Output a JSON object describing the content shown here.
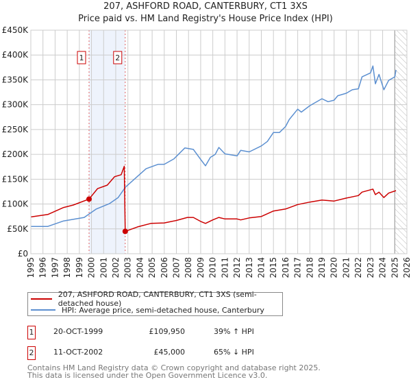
{
  "title": "207, ASHFORD ROAD, CANTERBURY, CT1 3XS",
  "subtitle": "Price paid vs. HM Land Registry's House Price Index (HPI)",
  "colors": {
    "price": "#cc0000",
    "hpi": "#5b8fd0",
    "band": "#eef3fc",
    "grid": "#cccccc"
  },
  "chart_data": {
    "type": "line",
    "ylim": [
      0,
      450000
    ],
    "xlim": [
      1995,
      2026
    ],
    "yticks": [
      0,
      50000,
      100000,
      150000,
      200000,
      250000,
      300000,
      350000,
      400000,
      450000
    ],
    "ytick_labels": [
      "£0",
      "£50K",
      "£100K",
      "£150K",
      "£200K",
      "£250K",
      "£300K",
      "£350K",
      "£400K",
      "£450K"
    ],
    "xticks": [
      "1995",
      "1996",
      "1997",
      "1998",
      "1999",
      "2000",
      "2001",
      "2002",
      "2003",
      "2004",
      "2005",
      "2006",
      "2007",
      "2008",
      "2009",
      "2010",
      "2011",
      "2012",
      "2013",
      "2014",
      "2015",
      "2016",
      "2017",
      "2018",
      "2019",
      "2020",
      "2021",
      "2022",
      "2023",
      "2024",
      "2025",
      "2026"
    ],
    "grid": true,
    "forecast_hatch_from": 2025.0,
    "series": [
      {
        "name": "207, ASHFORD ROAD, CANTERBURY, CT1 3XS (semi-detached house)",
        "x": [
          1995,
          1996.4,
          1997.7,
          1998.5,
          1999.8,
          2000.5,
          2001.3,
          2001.9,
          2002.45,
          2002.7,
          2002.78,
          2003.8,
          2004.9,
          2006,
          2007,
          2007.9,
          2008.4,
          2009,
          2009.4,
          2010,
          2010.5,
          2011,
          2012,
          2012.3,
          2013,
          2014,
          2015,
          2016,
          2017,
          2018,
          2019,
          2020,
          2021,
          2022,
          2022.3,
          2023.2,
          2023.4,
          2023.7,
          2024.1,
          2024.5,
          2025.1
        ],
        "y": [
          74000,
          79000,
          93000,
          98000,
          109950,
          131000,
          138000,
          155000,
          159000,
          176000,
          45000,
          54000,
          61000,
          62000,
          67000,
          73000,
          73000,
          65000,
          61000,
          68000,
          73000,
          70000,
          70000,
          68000,
          72000,
          75000,
          86000,
          90000,
          99000,
          104000,
          108000,
          106000,
          112000,
          117000,
          124000,
          130000,
          119000,
          124000,
          113000,
          122000,
          127000
        ]
      },
      {
        "name": "HPI: Average price, semi-detached house, Canterbury",
        "x": [
          1995,
          1996.4,
          1997.7,
          1999.4,
          2000.4,
          2001.5,
          2002.2,
          2002.8,
          2004.5,
          2005.5,
          2006,
          2006.8,
          2007.7,
          2008.4,
          2009,
          2009.4,
          2009.8,
          2010.2,
          2010.5,
          2011,
          2012,
          2012.3,
          2013,
          2014,
          2014.5,
          2015,
          2015.5,
          2016,
          2016.3,
          2017,
          2017.3,
          2018,
          2019,
          2019.5,
          2020,
          2020.3,
          2021,
          2021.5,
          2022,
          2022.3,
          2023,
          2023.2,
          2023.4,
          2023.7,
          2024.1,
          2024.5,
          2025,
          2025.1
        ],
        "y": [
          55000,
          55000,
          66000,
          73000,
          90000,
          101000,
          113000,
          134000,
          171000,
          180000,
          180000,
          191000,
          213000,
          210000,
          190000,
          177000,
          194000,
          200000,
          214000,
          201000,
          197000,
          208000,
          205000,
          217000,
          226000,
          244000,
          244000,
          256000,
          270000,
          291000,
          285000,
          298000,
          312000,
          306000,
          309000,
          318000,
          323000,
          330000,
          332000,
          356000,
          364000,
          378000,
          342000,
          361000,
          330000,
          349000,
          356000,
          370000
        ]
      }
    ],
    "annotations": [
      {
        "label": "1",
        "x": 1999.8,
        "y": 109950
      },
      {
        "label": "2",
        "x": 2002.78,
        "y": 45000
      }
    ]
  },
  "legend": {
    "price_label": "207, ASHFORD ROAD, CANTERBURY, CT1 3XS (semi-detached house)",
    "hpi_label": "HPI: Average price, semi-detached house, Canterbury"
  },
  "transactions": [
    {
      "num": "1",
      "date": "20-OCT-1999",
      "price": "£109,950",
      "hpi": "39% ↑ HPI"
    },
    {
      "num": "2",
      "date": "11-OCT-2002",
      "price": "£45,000",
      "hpi": "65% ↓ HPI"
    }
  ],
  "footer": {
    "line1": "Contains HM Land Registry data © Crown copyright and database right 2025.",
    "line2": "This data is licensed under the Open Government Licence v3.0."
  }
}
